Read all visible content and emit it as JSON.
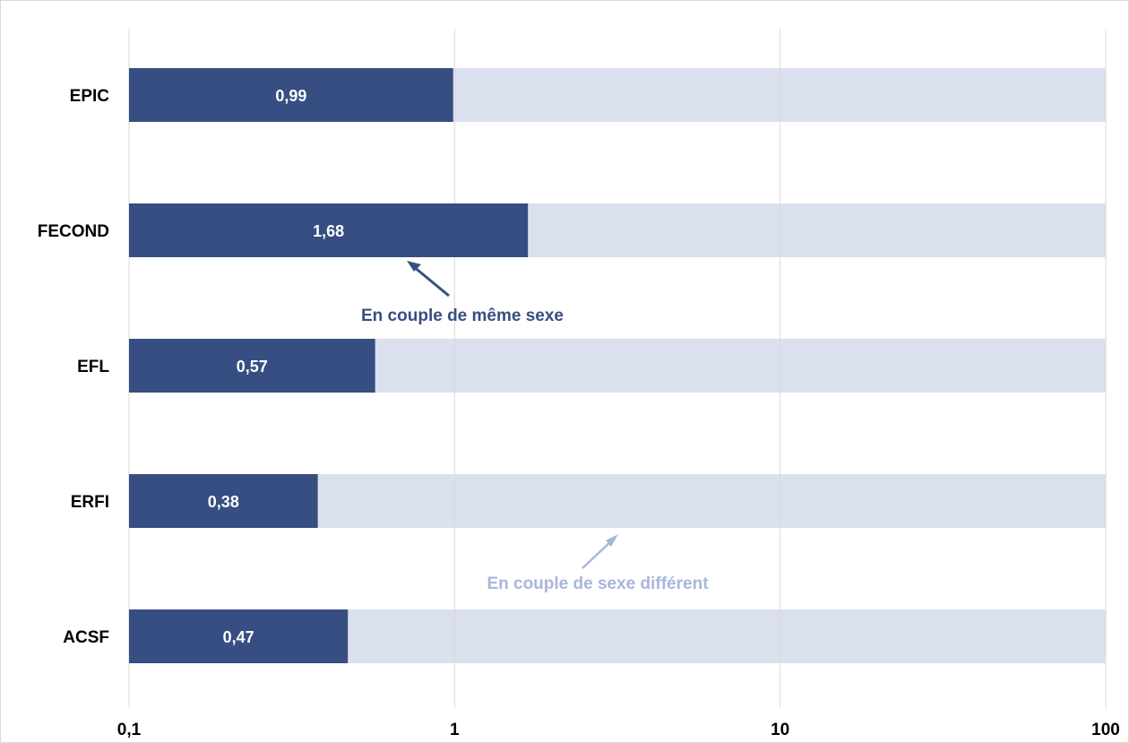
{
  "chart_data": {
    "type": "bar",
    "orientation": "horizontal",
    "stacked": true,
    "xscale": "log",
    "xlim": [
      0.1,
      100
    ],
    "xticks": [
      0.1,
      1,
      10,
      100
    ],
    "xtick_labels": [
      "0,1",
      "1",
      "10",
      "100"
    ],
    "grid": "vertical",
    "categories": [
      "EPIC",
      "FECOND",
      "EFL",
      "ERFI",
      "ACSF"
    ],
    "series": [
      {
        "values": [
          0.99,
          1.68,
          0.57,
          0.38,
          0.47
        ],
        "labels": [
          "0,99",
          "1,68",
          "0,57",
          "0,38",
          "0,47"
        ],
        "color": "#374e83"
      },
      {
        "values": [
          100,
          100,
          100,
          100,
          100
        ],
        "color": "#dbe0ef"
      }
    ],
    "annotations": [
      {
        "text": "En couple de même sexe",
        "color": "#374e83",
        "category": "FECOND",
        "x": 1.0
      },
      {
        "text": "En couple de sexe différent",
        "color": "#a9b6db",
        "category": "ERFI",
        "x": 3.5
      }
    ]
  }
}
